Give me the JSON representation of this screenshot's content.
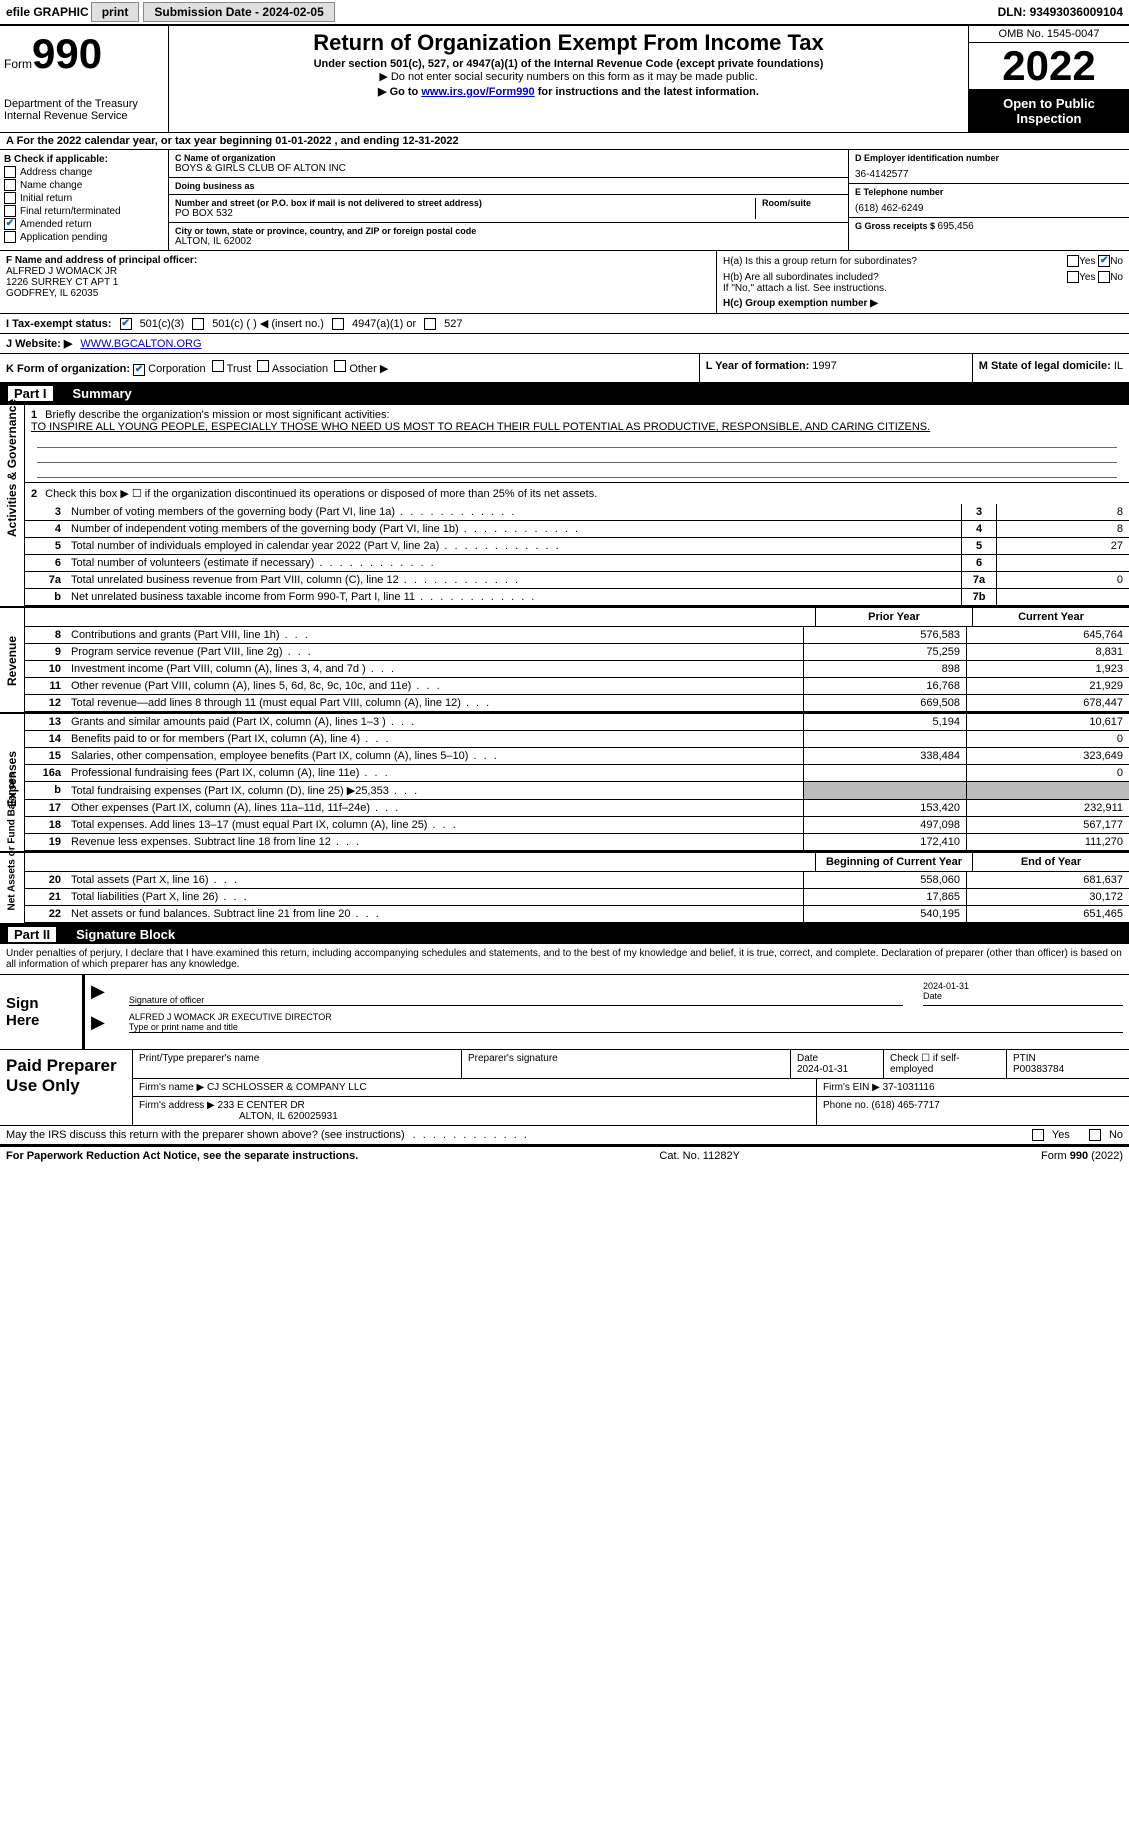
{
  "top": {
    "efile": "efile GRAPHIC",
    "print": "print",
    "sub_label": "Submission Date - ",
    "sub_date": "2024-02-05",
    "dln_label": "DLN: ",
    "dln": "93493036009104"
  },
  "header": {
    "form": "Form",
    "form_num": "990",
    "title": "Return of Organization Exempt From Income Tax",
    "sub1": "Under section 501(c), 527, or 4947(a)(1) of the Internal Revenue Code (except private foundations)",
    "sub2": "▶ Do not enter social security numbers on this form as it may be made public.",
    "sub3_pre": "▶ Go to ",
    "sub3_link": "www.irs.gov/Form990",
    "sub3_post": " for instructions and the latest information.",
    "dept": "Department of the Treasury",
    "irs": "Internal Revenue Service",
    "omb": "OMB No. 1545-0047",
    "year": "2022",
    "open": "Open to Public Inspection"
  },
  "lineA": {
    "text": "A For the 2022 calendar year, or tax year beginning ",
    "begin": "01-01-2022",
    "mid": " , and ending ",
    "end": "12-31-2022"
  },
  "B": {
    "title": "B Check if applicable:",
    "addr": "Address change",
    "name": "Name change",
    "initial": "Initial return",
    "final": "Final return/terminated",
    "amended": "Amended return",
    "app": "Application pending"
  },
  "C": {
    "name_lbl": "C Name of organization",
    "name": "BOYS & GIRLS CLUB OF ALTON INC",
    "dba_lbl": "Doing business as",
    "dba": "",
    "addr_lbl": "Number and street (or P.O. box if mail is not delivered to street address)",
    "room_lbl": "Room/suite",
    "addr": "PO BOX 532",
    "city_lbl": "City or town, state or province, country, and ZIP or foreign postal code",
    "city": "ALTON, IL  62002"
  },
  "D": {
    "ein_lbl": "D Employer identification number",
    "ein": "36-4142577",
    "tel_lbl": "E Telephone number",
    "tel": "(618) 462-6249",
    "gross_lbl": "G Gross receipts $ ",
    "gross": "695,456"
  },
  "F": {
    "lbl": "F Name and address of principal officer:",
    "name": "ALFRED J WOMACK JR",
    "addr1": "1226 SURREY CT APT 1",
    "addr2": "GODFREY, IL  62035"
  },
  "H": {
    "a": "H(a)  Is this a group return for subordinates?",
    "b": "H(b)  Are all subordinates included?",
    "b_note": "If \"No,\" attach a list. See instructions.",
    "c": "H(c)  Group exemption number ▶",
    "yes": "Yes",
    "no": "No"
  },
  "I": {
    "lbl": "I  Tax-exempt status:",
    "o1": "501(c)(3)",
    "o2": "501(c) (   ) ◀ (insert no.)",
    "o3": "4947(a)(1) or",
    "o4": "527"
  },
  "J": {
    "lbl": "J  Website: ▶",
    "val": "WWW.BGCALTON.ORG"
  },
  "K": {
    "lbl": "K Form of organization:",
    "corp": "Corporation",
    "trust": "Trust",
    "assoc": "Association",
    "other": "Other ▶"
  },
  "L": {
    "lbl": "L Year of formation: ",
    "val": "1997"
  },
  "M": {
    "lbl": "M State of legal domicile: ",
    "val": "IL"
  },
  "part1": {
    "num": "Part I",
    "title": "Summary",
    "tab1": "Activities & Governance",
    "tab2": "Revenue",
    "tab3": "Expenses",
    "tab4": "Net Assets or Fund Balances",
    "l1_lbl": "Briefly describe the organization's mission or most significant activities:",
    "l1_text": "TO INSPIRE ALL YOUNG PEOPLE, ESPECIALLY THOSE WHO NEED US MOST TO REACH THEIR FULL POTENTIAL AS PRODUCTIVE, RESPONSIBLE, AND CARING CITIZENS.",
    "l2": "Check this box ▶ ☐ if the organization discontinued its operations or disposed of more than 25% of its net assets.",
    "prior": "Prior Year",
    "current": "Current Year",
    "begin": "Beginning of Current Year",
    "endyr": "End of Year",
    "rows_gov": [
      {
        "n": "3",
        "d": "Number of voting members of the governing body (Part VI, line 1a)",
        "box": "3",
        "v": "8"
      },
      {
        "n": "4",
        "d": "Number of independent voting members of the governing body (Part VI, line 1b)",
        "box": "4",
        "v": "8"
      },
      {
        "n": "5",
        "d": "Total number of individuals employed in calendar year 2022 (Part V, line 2a)",
        "box": "5",
        "v": "27"
      },
      {
        "n": "6",
        "d": "Total number of volunteers (estimate if necessary)",
        "box": "6",
        "v": ""
      },
      {
        "n": "7a",
        "d": "Total unrelated business revenue from Part VIII, column (C), line 12",
        "box": "7a",
        "v": "0"
      },
      {
        "n": "b",
        "d": "Net unrelated business taxable income from Form 990-T, Part I, line 11",
        "box": "7b",
        "v": ""
      }
    ],
    "rows_rev": [
      {
        "n": "8",
        "d": "Contributions and grants (Part VIII, line 1h)",
        "py": "576,583",
        "cy": "645,764"
      },
      {
        "n": "9",
        "d": "Program service revenue (Part VIII, line 2g)",
        "py": "75,259",
        "cy": "8,831"
      },
      {
        "n": "10",
        "d": "Investment income (Part VIII, column (A), lines 3, 4, and 7d )",
        "py": "898",
        "cy": "1,923"
      },
      {
        "n": "11",
        "d": "Other revenue (Part VIII, column (A), lines 5, 6d, 8c, 9c, 10c, and 11e)",
        "py": "16,768",
        "cy": "21,929"
      },
      {
        "n": "12",
        "d": "Total revenue—add lines 8 through 11 (must equal Part VIII, column (A), line 12)",
        "py": "669,508",
        "cy": "678,447"
      }
    ],
    "rows_exp": [
      {
        "n": "13",
        "d": "Grants and similar amounts paid (Part IX, column (A), lines 1–3 )",
        "py": "5,194",
        "cy": "10,617"
      },
      {
        "n": "14",
        "d": "Benefits paid to or for members (Part IX, column (A), line 4)",
        "py": "",
        "cy": "0"
      },
      {
        "n": "15",
        "d": "Salaries, other compensation, employee benefits (Part IX, column (A), lines 5–10)",
        "py": "338,484",
        "cy": "323,649"
      },
      {
        "n": "16a",
        "d": "Professional fundraising fees (Part IX, column (A), line 11e)",
        "py": "",
        "cy": "0"
      },
      {
        "n": "b",
        "d": "Total fundraising expenses (Part IX, column (D), line 25) ▶25,353",
        "py": "SHADE",
        "cy": "SHADE"
      },
      {
        "n": "17",
        "d": "Other expenses (Part IX, column (A), lines 11a–11d, 11f–24e)",
        "py": "153,420",
        "cy": "232,911"
      },
      {
        "n": "18",
        "d": "Total expenses. Add lines 13–17 (must equal Part IX, column (A), line 25)",
        "py": "497,098",
        "cy": "567,177"
      },
      {
        "n": "19",
        "d": "Revenue less expenses. Subtract line 18 from line 12",
        "py": "172,410",
        "cy": "111,270"
      }
    ],
    "rows_net": [
      {
        "n": "20",
        "d": "Total assets (Part X, line 16)",
        "py": "558,060",
        "cy": "681,637"
      },
      {
        "n": "21",
        "d": "Total liabilities (Part X, line 26)",
        "py": "17,865",
        "cy": "30,172"
      },
      {
        "n": "22",
        "d": "Net assets or fund balances. Subtract line 21 from line 20",
        "py": "540,195",
        "cy": "651,465"
      }
    ]
  },
  "part2": {
    "num": "Part II",
    "title": "Signature Block",
    "decl": "Under penalties of perjury, I declare that I have examined this return, including accompanying schedules and statements, and to the best of my knowledge and belief, it is true, correct, and complete. Declaration of preparer (other than officer) is based on all information of which preparer has any knowledge.",
    "sign_here": "Sign Here",
    "sig_officer": "Signature of officer",
    "sig_date": "2024-01-31",
    "date_lbl": "Date",
    "officer_name": "ALFRED J WOMACK JR  EXECUTIVE DIRECTOR",
    "type_name": "Type or print name and title",
    "paid": "Paid Preparer Use Only",
    "prep_name_lbl": "Print/Type preparer's name",
    "prep_sig_lbl": "Preparer's signature",
    "prep_date_lbl": "Date",
    "prep_date": "2024-01-31",
    "check_self": "Check ☐ if self-employed",
    "ptin_lbl": "PTIN",
    "ptin": "P00383784",
    "firm_name_lbl": "Firm's name    ▶ ",
    "firm_name": "CJ SCHLOSSER & COMPANY LLC",
    "firm_ein_lbl": "Firm's EIN ▶ ",
    "firm_ein": "37-1031116",
    "firm_addr_lbl": "Firm's address ▶ ",
    "firm_addr": "233 E CENTER DR",
    "firm_city": "ALTON, IL  620025931",
    "phone_lbl": "Phone no. ",
    "phone": "(618) 465-7717",
    "discuss": "May the IRS discuss this return with the preparer shown above? (see instructions)",
    "yes": "Yes",
    "no": "No"
  },
  "footer": {
    "left": "For Paperwork Reduction Act Notice, see the separate instructions.",
    "mid": "Cat. No. 11282Y",
    "right_pre": "Form ",
    "right_form": "990",
    "right_post": " (2022)"
  }
}
